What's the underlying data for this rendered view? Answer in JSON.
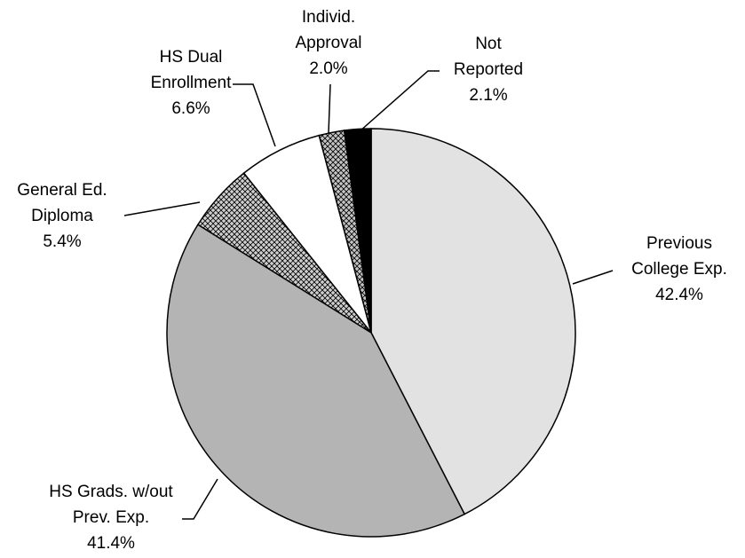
{
  "chart_data": {
    "type": "pie",
    "categories": [
      [
        "Previous",
        "College Exp."
      ],
      [
        "HS Grads. w/out",
        "Prev. Exp."
      ],
      [
        "General Ed.",
        "Diploma"
      ],
      [
        "HS Dual",
        "Enrollment"
      ],
      [
        "Individ.",
        "Approval"
      ],
      [
        "Not",
        "Reported"
      ]
    ],
    "values": [
      42.4,
      41.4,
      5.4,
      6.6,
      2.0,
      2.1
    ],
    "value_labels": [
      "42.4%",
      "41.4%",
      "5.4%",
      "6.6%",
      "2.0%",
      "2.1%"
    ],
    "colors": [
      "#e2e2e2",
      "#b4b4b4",
      "#cfcfcf",
      "#ffffff",
      "#c4c4c4",
      "#000000"
    ]
  }
}
